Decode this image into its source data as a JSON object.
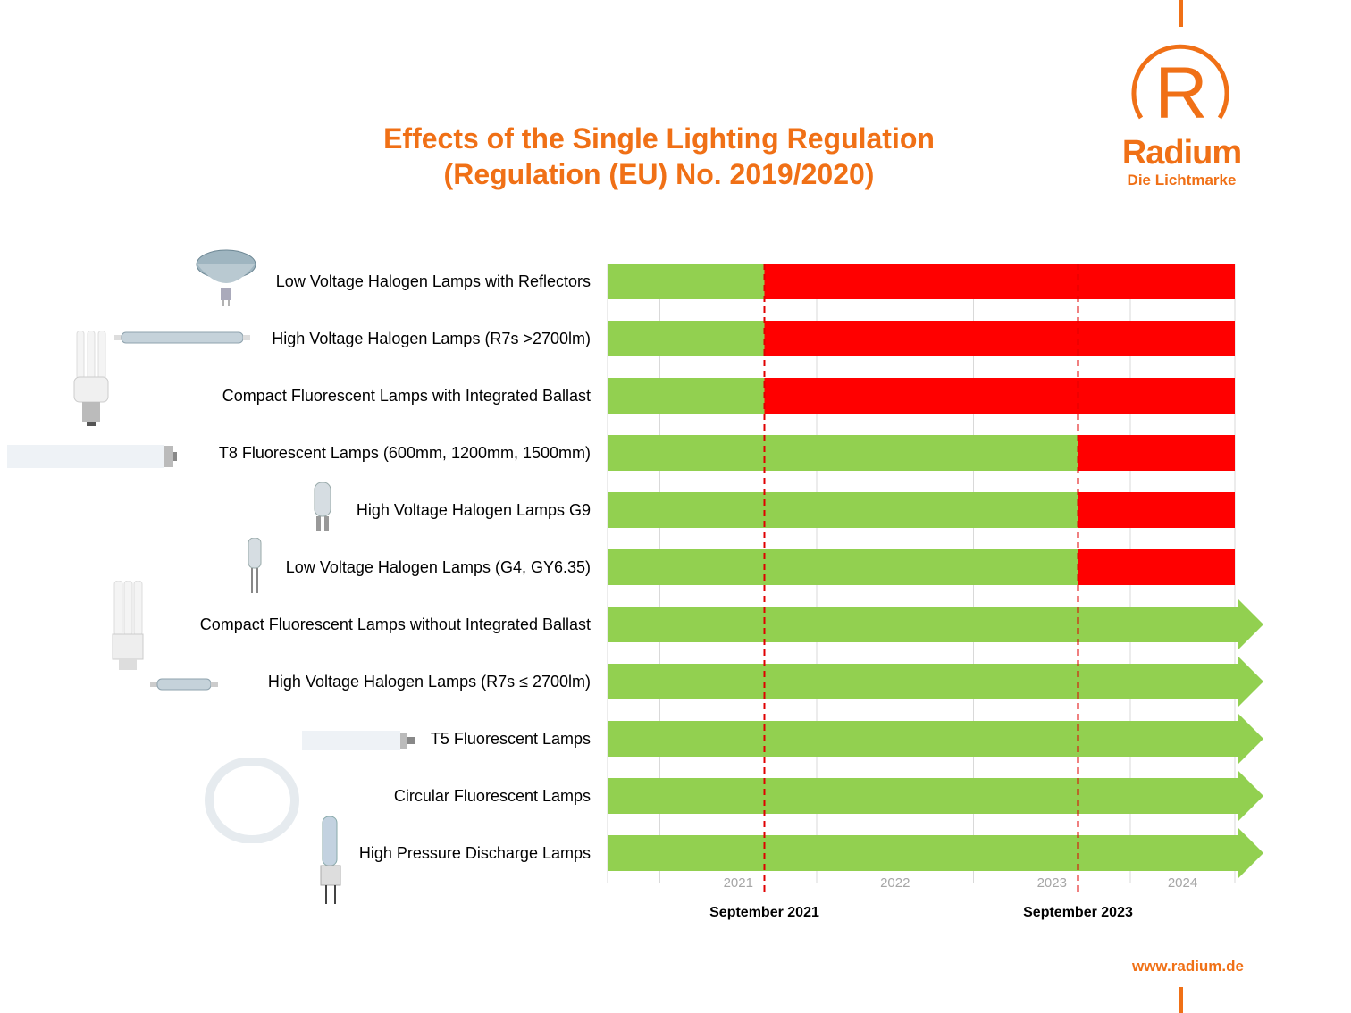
{
  "header": {
    "title_line1": "Effects of the Single Lighting Regulation",
    "title_line2": "(Regulation (EU) No. 2019/2020)"
  },
  "logo": {
    "brand": "Radium",
    "tagline": "Die Lichtmarke",
    "mark": "R"
  },
  "footer": {
    "url": "www.radium.de"
  },
  "colors": {
    "orange": "#f07016",
    "allowed": "#92d050",
    "banned": "#ff0000",
    "grid": "#d9d9d9"
  },
  "chart_data": {
    "type": "gantt",
    "x_range": [
      "2020-09",
      "2024-09"
    ],
    "x_ticks": [
      "2021",
      "2022",
      "2023",
      "2024"
    ],
    "milestones": [
      {
        "date": "2021-09",
        "label": "September 2021"
      },
      {
        "date": "2023-09",
        "label": "September 2023"
      }
    ],
    "legend": "none",
    "rows": [
      {
        "label": "Low Voltage Halogen Lamps with  Reflectors",
        "icon": "mr16-reflector-lamp",
        "ban_date": "2021-09"
      },
      {
        "label": "High Voltage Halogen Lamps (R7s >2700lm)",
        "icon": "r7s-long-lamp",
        "ban_date": "2021-09"
      },
      {
        "label": "Compact Fluorescent Lamps with  Integrated Ballast",
        "icon": "cfl-e27-lamp",
        "ban_date": "2021-09"
      },
      {
        "label": "T8 Fluorescent Lamps (600mm, 1200mm, 1500mm)",
        "icon": "t8-tube-lamp",
        "ban_date": "2023-09"
      },
      {
        "label": "High Voltage Halogen Lamps G9",
        "icon": "g9-capsule-lamp",
        "ban_date": "2023-09"
      },
      {
        "label": "Low Voltage Halogen Lamps (G4, GY6.35)",
        "icon": "g4-capsule-lamp",
        "ban_date": "2023-09"
      },
      {
        "label": "Compact Fluorescent Lamps without  Integrated Ballast",
        "icon": "cfl-plugin-lamp",
        "ban_date": null
      },
      {
        "label": "High Voltage Halogen Lamps  (R7s ≤ 2700lm)",
        "icon": "r7s-short-lamp",
        "ban_date": null
      },
      {
        "label": "T5 Fluorescent Lamps",
        "icon": "t5-tube-lamp",
        "ban_date": null
      },
      {
        "label": "Circular Fluorescent Lamps",
        "icon": "circular-tube-lamp",
        "ban_date": null
      },
      {
        "label": "High Pressure Discharge Lamps",
        "icon": "hid-lamp",
        "ban_date": null
      }
    ]
  }
}
